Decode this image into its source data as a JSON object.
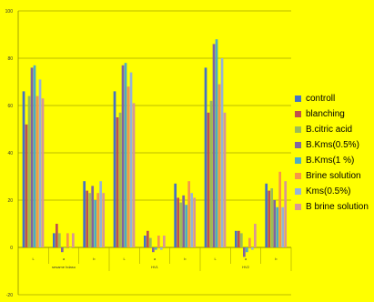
{
  "chart_data": {
    "type": "bar",
    "title": "",
    "xlabel": "",
    "ylabel": "",
    "ylim": [
      -20,
      100
    ],
    "yticks": [
      -20,
      0,
      20,
      40,
      60,
      80,
      100
    ],
    "grid": true,
    "legend_position": "right",
    "categories": [
      "L",
      "a",
      "b",
      "L",
      "a",
      "b",
      "L",
      "a",
      "b"
    ],
    "group_labels": [
      "sesame hdasu",
      "HV1",
      "HV2"
    ],
    "series": [
      {
        "name": "controll",
        "color": "#4472C4",
        "values": [
          66,
          6,
          28,
          66,
          5,
          27,
          76,
          7,
          27
        ]
      },
      {
        "name": "blanching",
        "color": "#C0504D",
        "values": [
          52,
          10,
          24,
          55,
          7,
          21,
          57,
          7,
          24
        ]
      },
      {
        "name": "B.citric acid",
        "color": "#9BBB59",
        "values": [
          64,
          6,
          23,
          57,
          4,
          19,
          62,
          6,
          25
        ]
      },
      {
        "name": "B.Kms(0.5%)",
        "color": "#8064A2",
        "values": [
          76,
          -2,
          26,
          77,
          -2,
          22,
          86,
          -4,
          20
        ]
      },
      {
        "name": "B.Kms(1 %)",
        "color": "#4BACC6",
        "values": [
          77,
          0,
          20,
          78,
          -1,
          18,
          88,
          -2,
          17
        ]
      },
      {
        "name": "Brine solution",
        "color": "#F79646",
        "values": [
          64,
          6,
          23,
          68,
          5,
          28,
          69,
          4,
          32
        ]
      },
      {
        "name": "Kms(0.5%)",
        "color": "#95B3D7",
        "values": [
          71,
          0,
          28,
          74,
          -1,
          23,
          80,
          -1,
          17
        ]
      },
      {
        "name": "B brine solution",
        "color": "#D99694",
        "values": [
          63,
          6,
          23,
          61,
          5,
          21,
          57,
          10,
          28
        ]
      }
    ]
  }
}
